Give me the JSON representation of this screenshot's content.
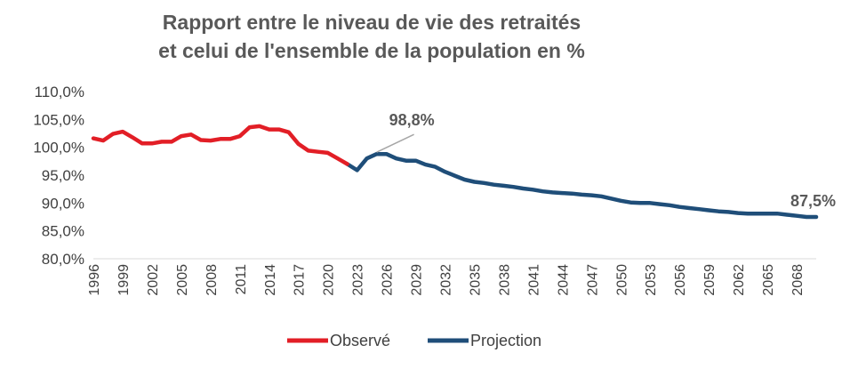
{
  "chart_data": {
    "type": "line",
    "title_lines": [
      "Rapport entre le niveau de vie des retraités",
      "et celui de l'ensemble de la population en %"
    ],
    "ylim": [
      80,
      110
    ],
    "y_ticks": [
      "110,0%",
      "105,0%",
      "100,0%",
      "95,0%",
      "90,0%",
      "85,0%",
      "80,0%"
    ],
    "y_tick_values": [
      110,
      105,
      100,
      95,
      90,
      85,
      80
    ],
    "x_range": [
      1996,
      2070
    ],
    "x_ticks": [
      "1996",
      "1999",
      "2002",
      "2005",
      "2008",
      "2011",
      "2014",
      "2017",
      "2020",
      "2023",
      "2026",
      "2029",
      "2032",
      "2035",
      "2038",
      "2041",
      "2044",
      "2047",
      "2050",
      "2053",
      "2056",
      "2059",
      "2062",
      "2065",
      "2068"
    ],
    "x_tick_values": [
      1996,
      1999,
      2002,
      2005,
      2008,
      2011,
      2014,
      2017,
      2020,
      2023,
      2026,
      2029,
      2032,
      2035,
      2038,
      2041,
      2044,
      2047,
      2050,
      2053,
      2056,
      2059,
      2062,
      2065,
      2068
    ],
    "grid": false,
    "legend_position": "bottom",
    "series": [
      {
        "name": "Observé",
        "color": "#e21e26",
        "x": [
          1996,
          1997,
          1998,
          1999,
          2000,
          2001,
          2002,
          2003,
          2004,
          2005,
          2006,
          2007,
          2008,
          2009,
          2010,
          2011,
          2012,
          2013,
          2014,
          2015,
          2016,
          2017,
          2018,
          2019,
          2020,
          2021,
          2022
        ],
        "y": [
          101.6,
          101.2,
          102.4,
          102.8,
          101.8,
          100.7,
          100.7,
          101.0,
          101.0,
          102.0,
          102.3,
          101.3,
          101.2,
          101.5,
          101.5,
          102.0,
          103.6,
          103.8,
          103.2,
          103.2,
          102.7,
          100.6,
          99.4,
          99.2,
          99.0,
          98.0,
          97.0
        ]
      },
      {
        "name": "Projection",
        "color": "#1f4e79",
        "x": [
          2022,
          2023,
          2024,
          2025,
          2026,
          2027,
          2028,
          2029,
          2030,
          2031,
          2032,
          2033,
          2034,
          2035,
          2036,
          2037,
          2038,
          2039,
          2040,
          2041,
          2042,
          2043,
          2044,
          2045,
          2046,
          2047,
          2048,
          2049,
          2050,
          2051,
          2052,
          2053,
          2054,
          2055,
          2056,
          2057,
          2058,
          2059,
          2060,
          2061,
          2062,
          2063,
          2064,
          2065,
          2066,
          2067,
          2068,
          2069,
          2070
        ],
        "y": [
          97.0,
          95.9,
          98.0,
          98.8,
          98.8,
          98.0,
          97.6,
          97.6,
          96.9,
          96.5,
          95.6,
          94.9,
          94.2,
          93.8,
          93.6,
          93.3,
          93.1,
          92.9,
          92.6,
          92.4,
          92.1,
          91.9,
          91.8,
          91.7,
          91.5,
          91.4,
          91.2,
          90.8,
          90.4,
          90.1,
          90.0,
          90.0,
          89.8,
          89.6,
          89.3,
          89.1,
          88.9,
          88.7,
          88.5,
          88.4,
          88.2,
          88.1,
          88.1,
          88.1,
          88.1,
          87.9,
          87.7,
          87.5,
          87.5
        ]
      }
    ],
    "annotations": [
      {
        "text": "98,8%",
        "x": 2025,
        "y": 98.8
      },
      {
        "text": "87,5%",
        "x": 2070,
        "y": 87.5
      }
    ]
  }
}
